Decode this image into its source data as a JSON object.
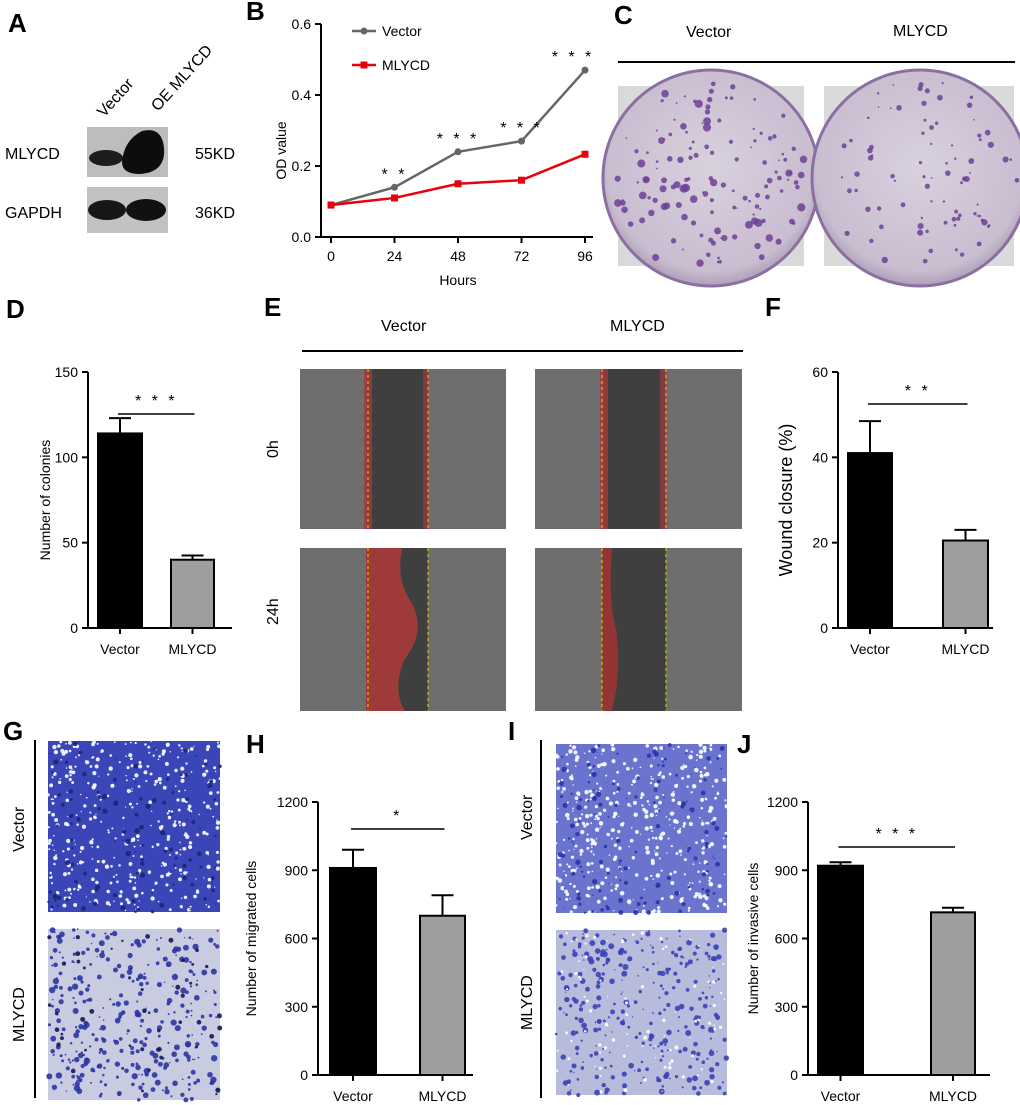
{
  "panels": {
    "A": {
      "letter": "A",
      "lanes": [
        "Vector",
        "OE MLYCD"
      ],
      "rows": [
        {
          "protein": "MLYCD",
          "size": "55KD"
        },
        {
          "protein": "GAPDH",
          "size": "36KD"
        }
      ]
    },
    "C": {
      "letter": "C",
      "headers": [
        "Vector",
        "MLYCD"
      ]
    },
    "E": {
      "letter": "E",
      "headers": [
        "Vector",
        "MLYCD"
      ],
      "rows": [
        "0h",
        "24h"
      ]
    },
    "G": {
      "letter": "G",
      "rows": [
        "Vector",
        "MLYCD"
      ]
    },
    "I": {
      "letter": "I",
      "rows": [
        "Vector",
        "MLYCD"
      ]
    }
  },
  "chart_data": [
    {
      "id": "B",
      "letter": "B",
      "type": "line",
      "xlabel": "Hours",
      "ylabel": "OD value",
      "x": [
        0,
        24,
        48,
        72,
        96
      ],
      "xticks": [
        0,
        24,
        48,
        72,
        96
      ],
      "ylim": [
        0,
        0.6
      ],
      "yticks": [
        0.0,
        0.2,
        0.4,
        0.6
      ],
      "ytick_labels": [
        "0.0",
        "0.2",
        "0.4",
        "0.6"
      ],
      "legend": "top-left",
      "series": [
        {
          "name": "Vector",
          "values": [
            0.09,
            0.14,
            0.24,
            0.27,
            0.47
          ],
          "color": "#666666",
          "marker": "circle"
        },
        {
          "name": "MLYCD",
          "values": [
            0.09,
            0.11,
            0.15,
            0.16,
            0.233
          ],
          "err": [
            0,
            0,
            0,
            0,
            0.01
          ],
          "color": "#e8000b",
          "marker": "square"
        }
      ],
      "annotations": [
        {
          "x": 24,
          "label": "* *"
        },
        {
          "x": 48,
          "label": "* * *"
        },
        {
          "x": 72,
          "label": "* * *"
        },
        {
          "x": 96,
          "label": "* * *"
        }
      ]
    },
    {
      "id": "D",
      "letter": "D",
      "type": "bar",
      "categories": [
        "Vector",
        "MLYCD"
      ],
      "values": [
        114,
        40
      ],
      "errors": [
        9,
        2.5
      ],
      "colors": [
        "#000000",
        "#9e9e9e"
      ],
      "ylabel": "Number of colonies",
      "ylim": [
        0,
        150
      ],
      "yticks": [
        0,
        50,
        100,
        150
      ],
      "significance": "* * *"
    },
    {
      "id": "F",
      "letter": "F",
      "type": "bar",
      "categories": [
        "Vector",
        "MLYCD"
      ],
      "values": [
        41,
        20.5
      ],
      "errors": [
        7.5,
        2.5
      ],
      "colors": [
        "#000000",
        "#9e9e9e"
      ],
      "ylabel": "Wound closure (%)",
      "ylim": [
        0,
        60
      ],
      "yticks": [
        0,
        20,
        40,
        60
      ],
      "significance": "* *"
    },
    {
      "id": "H",
      "letter": "H",
      "type": "bar",
      "categories": [
        "Vector",
        "MLYCD"
      ],
      "values": [
        910,
        700
      ],
      "errors": [
        80,
        90
      ],
      "colors": [
        "#000000",
        "#9e9e9e"
      ],
      "ylabel": "Number of migrated cells",
      "ylim": [
        0,
        1200
      ],
      "yticks": [
        0,
        300,
        600,
        900,
        1200
      ],
      "significance": "*"
    },
    {
      "id": "J",
      "letter": "J",
      "type": "bar",
      "categories": [
        "Vector",
        "MLYCD"
      ],
      "values": [
        920,
        715
      ],
      "errors": [
        15,
        20
      ],
      "colors": [
        "#000000",
        "#9e9e9e"
      ],
      "ylabel": "Number of invasive cells",
      "ylim": [
        0,
        1200
      ],
      "yticks": [
        0,
        300,
        600,
        900,
        1200
      ],
      "significance": "* * *"
    }
  ]
}
